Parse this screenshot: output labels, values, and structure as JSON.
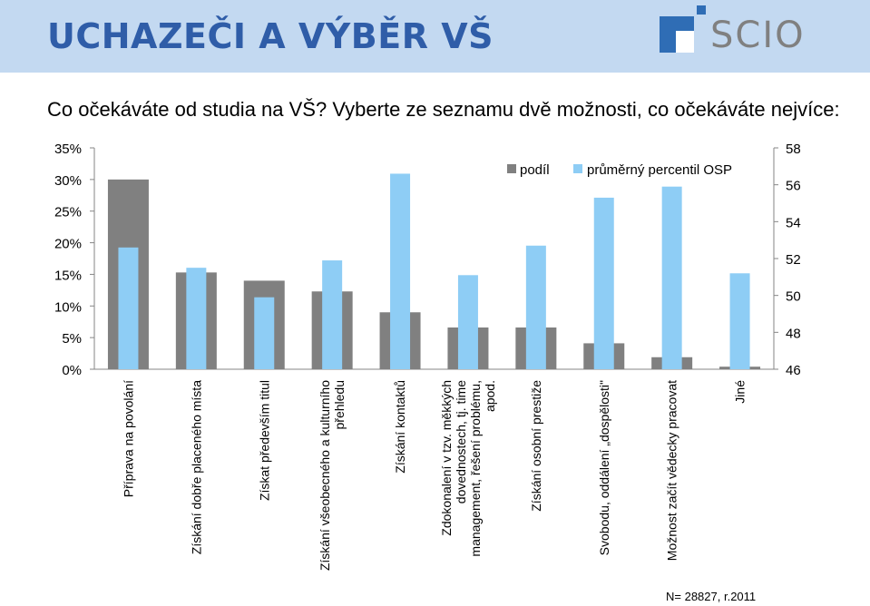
{
  "header": {
    "title": "UCHAZEČI A VÝBĚR VŠ",
    "logo_text": "SCIO"
  },
  "question": "Co očekáváte od studia na VŠ?  Vyberte ze seznamu dvě možnosti, co očekáváte nejvíce:",
  "footnote": "N= 28827, r.2011",
  "colors": {
    "header_bg": "#c3d9f1",
    "title": "#2f5da8",
    "share": "#808080",
    "percentile": "#8ecdf5"
  },
  "chart_data": {
    "type": "bar",
    "categories": [
      "Příprava na povolání",
      "Získání dobře placeného místa",
      "Získat především titul",
      "Získání všeobecného a kulturního přehledu",
      "Získání kontaktů",
      "Zdokonalení v tzv. měkkých dovednostech, tj. time management, řešení problému, apod.",
      "Získání osobní prestiže",
      "Svobodu, oddálení „dospělosti\"",
      "Možnost začít vědecky pracovat",
      "Jiné"
    ],
    "category_lines": [
      [
        "Příprava na povolání"
      ],
      [
        "Získání dobře placeného místa"
      ],
      [
        "Získat především titul"
      ],
      [
        "Získání všeobecného a kulturního",
        "přehledu"
      ],
      [
        "Získání kontaktů"
      ],
      [
        "Zdokonalení v tzv. měkkých",
        "dovednostech, tj. time",
        "management, řešení problému,",
        "apod."
      ],
      [
        "Získání osobní prestiže"
      ],
      [
        "Svobodu, oddálení „dospělosti\""
      ],
      [
        "Možnost začít vědecky pracovat"
      ],
      [
        "Jiné"
      ]
    ],
    "series": [
      {
        "name": "podíl",
        "axis": "left",
        "values": [
          30,
          15.3,
          14,
          12.3,
          9,
          6.6,
          6.6,
          4.1,
          1.9,
          0.4
        ]
      },
      {
        "name": "průměrný percentil OSP",
        "axis": "right",
        "values": [
          52.6,
          51.5,
          49.9,
          51.9,
          56.6,
          51.1,
          52.7,
          55.3,
          55.9,
          51.2
        ]
      }
    ],
    "ylim_left": [
      0,
      35
    ],
    "yticks_left": [
      "0%",
      "5%",
      "10%",
      "15%",
      "20%",
      "25%",
      "30%",
      "35%"
    ],
    "ylim_right": [
      46,
      58
    ],
    "yticks_right": [
      "46",
      "48",
      "50",
      "52",
      "54",
      "56",
      "58"
    ],
    "legend_position": "top-right",
    "grid": false
  }
}
